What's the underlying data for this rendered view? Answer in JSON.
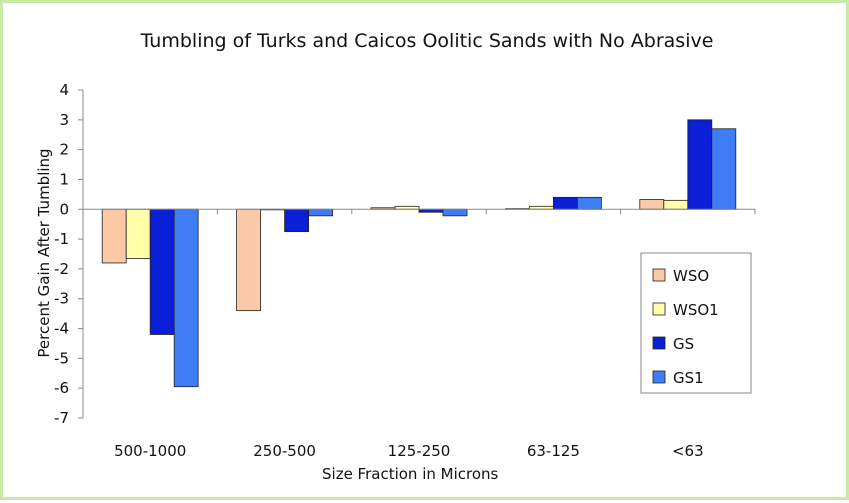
{
  "chart_data": {
    "type": "bar",
    "title": "Tumbling of Turks and Caicos Oolitic Sands with No Abrasive",
    "xlabel": "Size Fraction in Microns",
    "ylabel": "Percent Gain After Tumbling",
    "categories": [
      "500-1000",
      "250-500",
      "125-250",
      "63-125",
      "<63"
    ],
    "ylim": [
      -7,
      4
    ],
    "yticks": [
      "4",
      "3",
      "2",
      "1",
      "0",
      "-1",
      "-2",
      "-3",
      "-4",
      "-5",
      "-6",
      "-7"
    ],
    "grid": false,
    "legend_position": "right",
    "series": [
      {
        "name": "WSO",
        "color": "#fbc9a5",
        "values": [
          -1.8,
          -3.4,
          0.05,
          0.02,
          0.33
        ]
      },
      {
        "name": "WSO1",
        "color": "#ffffaa",
        "values": [
          -1.65,
          -0.02,
          0.1,
          0.1,
          0.3
        ]
      },
      {
        "name": "GS",
        "color": "#0a1fd6",
        "values": [
          -4.2,
          -0.75,
          -0.1,
          0.4,
          3.0
        ]
      },
      {
        "name": "GS1",
        "color": "#3f7df5",
        "values": [
          -5.95,
          -0.22,
          -0.22,
          0.4,
          2.7
        ]
      }
    ]
  }
}
